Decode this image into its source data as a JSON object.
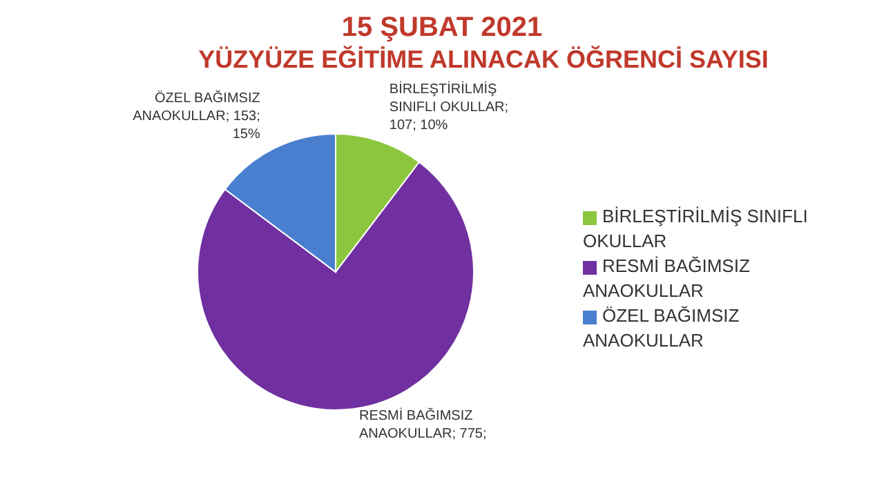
{
  "chart_data": {
    "type": "pie",
    "title": "15 ŞUBAT 2021",
    "subtitle": "YÜZYÜZE EĞİTİME ALINACAK ÖĞRENCİ SAYISI",
    "categories": [
      "BİRLEŞTİRİLMİŞ SINIFLI OKULLAR",
      "RESMİ BAĞIMSIZ ANAOKULLAR",
      "ÖZEL BAĞIMSIZ ANAOKULLAR"
    ],
    "values": [
      107,
      775,
      153
    ],
    "value_labels": [
      "BİRLEŞTİRİLMİŞ SINIFLI OKULLAR; 107; 10%",
      "RESMİ BAĞIMSIZ ANAOKULLAR; 775;",
      "ÖZEL BAĞIMSIZ ANAOKULLAR; 153; 15%"
    ],
    "colors": [
      "#8cc63f",
      "#7030a0",
      "#4a7fd0"
    ],
    "legend": "right"
  }
}
